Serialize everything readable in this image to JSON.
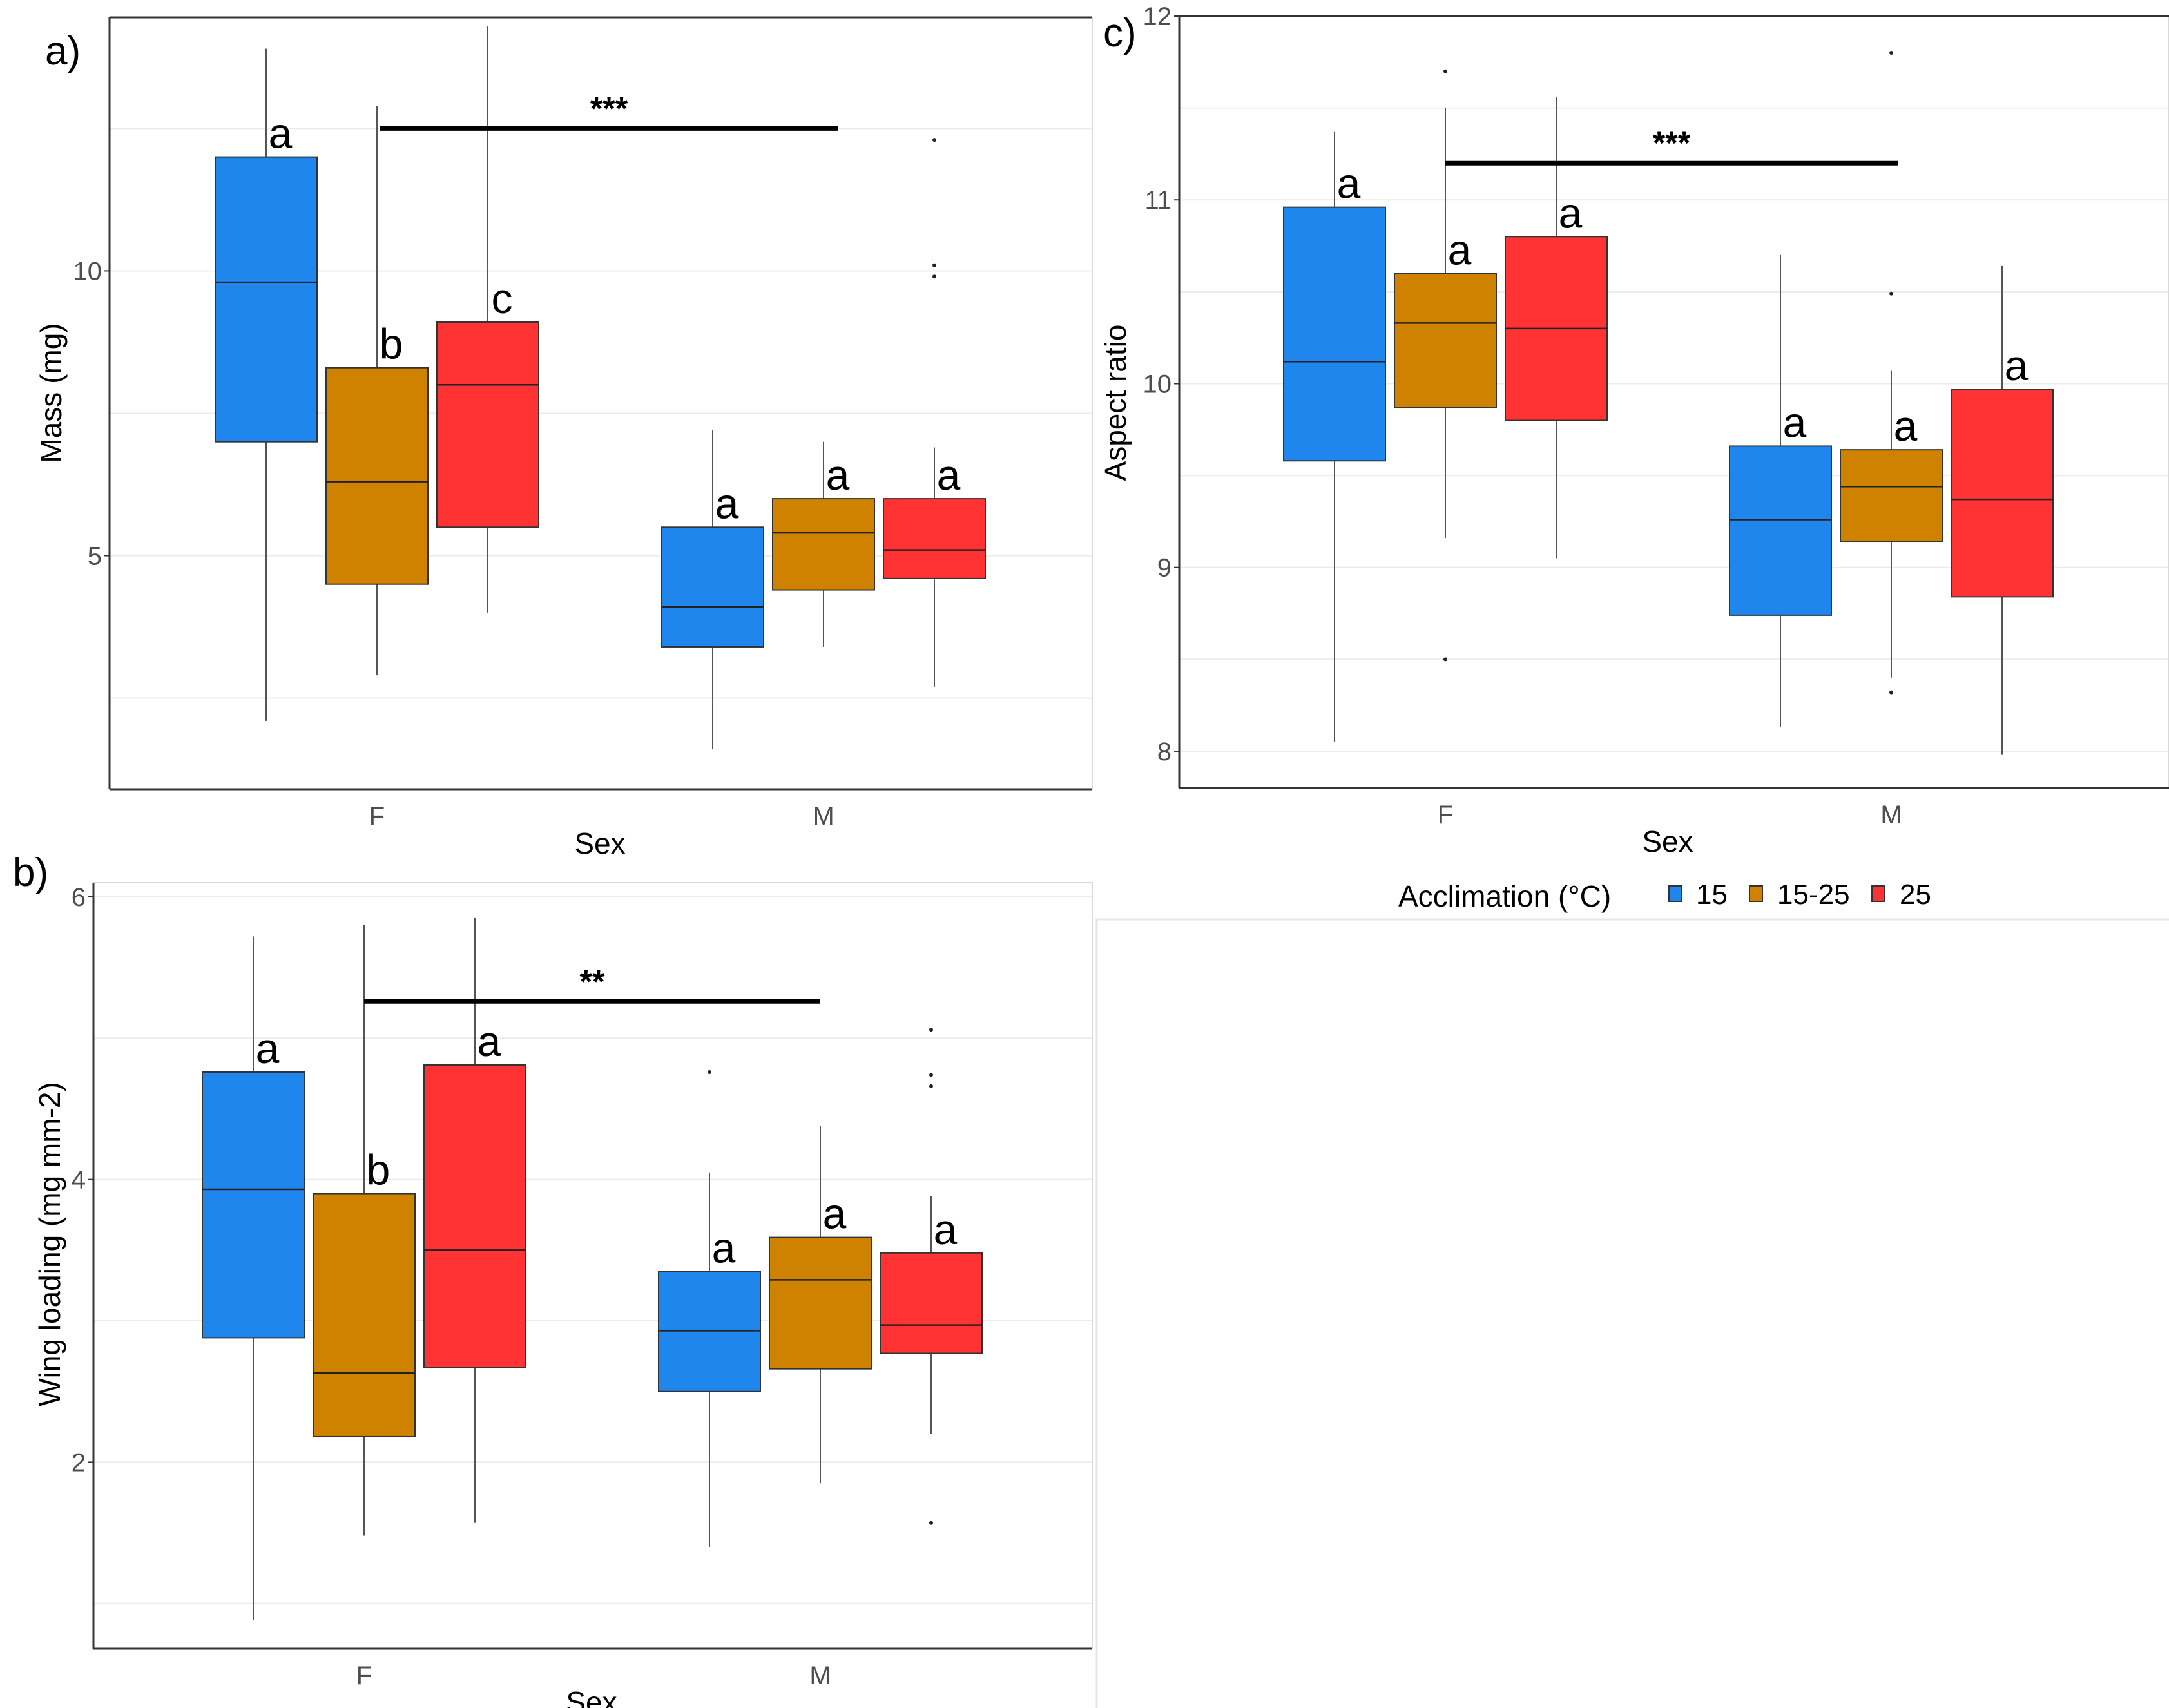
{
  "colors": {
    "c15": "#1f86ee",
    "c1525": "#cf8200",
    "c25": "#ff3333",
    "grid": "#ebebeb",
    "whisker": "#555555",
    "frame": "#333333"
  },
  "legend": {
    "title": "Acclimation (°C)",
    "items": [
      {
        "label": "15",
        "color": "#1f86ee"
      },
      {
        "label": "15-25",
        "color": "#cf8200"
      },
      {
        "label": "25",
        "color": "#ff3333"
      }
    ]
  },
  "chart_data": [
    {
      "type": "box",
      "panel_label": "a)",
      "title": "",
      "xlabel": "Sex",
      "ylabel": "Mass (mg)",
      "categories": [
        "F",
        "M"
      ],
      "ylim": [
        0.9,
        14.45
      ],
      "yticks": [
        5,
        10
      ],
      "minor_grid": [
        2.5,
        7.5,
        12.5
      ],
      "series": [
        {
          "name": "15",
          "boxes": [
            {
              "category": "F",
              "min": 2.1,
              "q1": 7.0,
              "median": 9.8,
              "q3": 12.0,
              "max": 13.9,
              "outliers": [],
              "letter": "a"
            },
            {
              "category": "M",
              "min": 1.6,
              "q1": 3.4,
              "median": 4.1,
              "q3": 5.5,
              "max": 7.2,
              "outliers": [],
              "letter": "a"
            }
          ]
        },
        {
          "name": "15-25",
          "boxes": [
            {
              "category": "F",
              "min": 2.9,
              "q1": 4.5,
              "median": 6.3,
              "q3": 8.3,
              "max": 12.9,
              "outliers": [],
              "letter": "b"
            },
            {
              "category": "M",
              "min": 3.4,
              "q1": 4.4,
              "median": 5.4,
              "q3": 6.0,
              "max": 7.0,
              "outliers": [],
              "letter": "a"
            }
          ]
        },
        {
          "name": "25",
          "boxes": [
            {
              "category": "F",
              "min": 4.0,
              "q1": 5.5,
              "median": 8.0,
              "q3": 9.1,
              "max": 14.3,
              "outliers": [],
              "letter": "c"
            },
            {
              "category": "M",
              "min": 2.7,
              "q1": 4.6,
              "median": 5.1,
              "q3": 6.0,
              "max": 6.9,
              "outliers": [
                12.3,
                10.1,
                9.9
              ],
              "letter": "a"
            }
          ]
        }
      ],
      "significance": {
        "label": "***",
        "y": 12.5
      }
    },
    {
      "type": "box",
      "panel_label": "b)",
      "title": "",
      "xlabel": "Sex",
      "ylabel": "Wing loading (mg mm-2)",
      "categories": [
        "F",
        "M"
      ],
      "ylim": [
        0.68,
        6.1
      ],
      "yticks": [
        2,
        4,
        6
      ],
      "minor_grid": [
        1,
        3,
        5
      ],
      "series": [
        {
          "name": "15",
          "boxes": [
            {
              "category": "F",
              "min": 0.88,
              "q1": 2.88,
              "median": 3.93,
              "q3": 4.76,
              "max": 5.72,
              "outliers": [],
              "letter": "a"
            },
            {
              "category": "M",
              "min": 1.4,
              "q1": 2.5,
              "median": 2.93,
              "q3": 3.35,
              "max": 4.05,
              "outliers": [
                4.76
              ],
              "letter": "a"
            }
          ]
        },
        {
          "name": "15-25",
          "boxes": [
            {
              "category": "F",
              "min": 1.48,
              "q1": 2.18,
              "median": 2.63,
              "q3": 3.9,
              "max": 5.8,
              "outliers": [],
              "letter": "b"
            },
            {
              "category": "M",
              "min": 1.85,
              "q1": 2.66,
              "median": 3.29,
              "q3": 3.59,
              "max": 4.38,
              "outliers": [],
              "letter": "a"
            }
          ]
        },
        {
          "name": "25",
          "boxes": [
            {
              "category": "F",
              "min": 1.57,
              "q1": 2.67,
              "median": 3.5,
              "q3": 4.81,
              "max": 5.85,
              "outliers": [],
              "letter": "a"
            },
            {
              "category": "M",
              "min": 2.2,
              "q1": 2.77,
              "median": 2.97,
              "q3": 3.48,
              "max": 3.88,
              "outliers": [
                5.06,
                4.74,
                4.66,
                1.57
              ],
              "letter": "a"
            }
          ]
        }
      ],
      "significance": {
        "label": "**",
        "y": 5.26
      }
    },
    {
      "type": "box",
      "panel_label": "c)",
      "title": "",
      "xlabel": "Sex",
      "ylabel": "Aspect ratio",
      "categories": [
        "F",
        "M"
      ],
      "ylim": [
        7.8,
        12.0
      ],
      "yticks": [
        8,
        9,
        10,
        11,
        12
      ],
      "minor_grid": [
        8.5,
        9.5,
        10.5,
        11.5
      ],
      "series": [
        {
          "name": "15",
          "boxes": [
            {
              "category": "F",
              "min": 8.05,
              "q1": 9.58,
              "median": 10.12,
              "q3": 10.96,
              "max": 11.37,
              "outliers": [],
              "letter": "a"
            },
            {
              "category": "M",
              "min": 8.13,
              "q1": 8.74,
              "median": 9.26,
              "q3": 9.66,
              "max": 10.7,
              "outliers": [],
              "letter": "a"
            }
          ]
        },
        {
          "name": "15-25",
          "boxes": [
            {
              "category": "F",
              "min": 9.16,
              "q1": 9.87,
              "median": 10.33,
              "q3": 10.6,
              "max": 11.5,
              "outliers": [
                11.7,
                8.5
              ],
              "letter": "a"
            },
            {
              "category": "M",
              "min": 8.4,
              "q1": 9.14,
              "median": 9.44,
              "q3": 9.64,
              "max": 10.07,
              "outliers": [
                11.8,
                10.49,
                8.32
              ],
              "letter": "a"
            }
          ]
        },
        {
          "name": "25",
          "boxes": [
            {
              "category": "F",
              "min": 9.05,
              "q1": 9.8,
              "median": 10.3,
              "q3": 10.8,
              "max": 11.56,
              "outliers": [],
              "letter": "a"
            },
            {
              "category": "M",
              "min": 7.98,
              "q1": 8.84,
              "median": 9.37,
              "q3": 9.97,
              "max": 10.64,
              "outliers": [],
              "letter": "a"
            }
          ]
        }
      ],
      "significance": {
        "label": "***",
        "y": 11.2
      }
    }
  ]
}
